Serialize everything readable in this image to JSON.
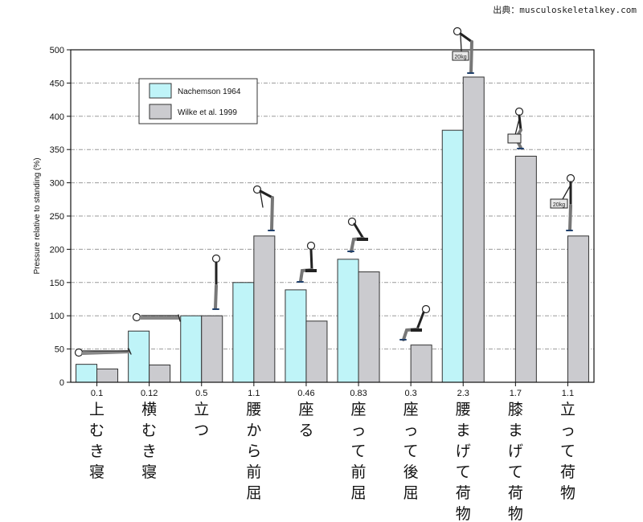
{
  "source": "出典：musculoskeletalkey.com",
  "chart_data": {
    "type": "bar",
    "title": "",
    "xlabel": "",
    "ylabel": "Pressure relative to standing (%)",
    "ylim": [
      0,
      500
    ],
    "yticks": [
      0,
      50,
      100,
      150,
      200,
      250,
      300,
      350,
      400,
      450,
      500
    ],
    "grid": true,
    "legend_position": "top-left",
    "categories": [
      "上むき寝",
      "横むき寝",
      "立つ",
      "腰から前屈",
      "座る",
      "座って前屈",
      "座って後屈",
      "腰まげて荷物",
      "膝まげて荷物",
      "立って荷物"
    ],
    "mpa": [
      "0.1",
      "0.12",
      "0.5",
      "1.1",
      "0.46",
      "0.83",
      "0.3",
      "2.3",
      "1.7",
      "1.1"
    ],
    "series": [
      {
        "name": "Nachemson 1964",
        "color": "#bff4f8",
        "values": [
          27,
          77,
          100,
          150,
          139,
          185,
          null,
          379,
          null,
          null
        ]
      },
      {
        "name": "Wilke et al. 1999",
        "color": "#cbcbcf",
        "values": [
          20,
          26,
          100,
          220,
          92,
          166,
          56,
          459,
          340,
          220
        ]
      }
    ],
    "weight_label": "20kg"
  }
}
